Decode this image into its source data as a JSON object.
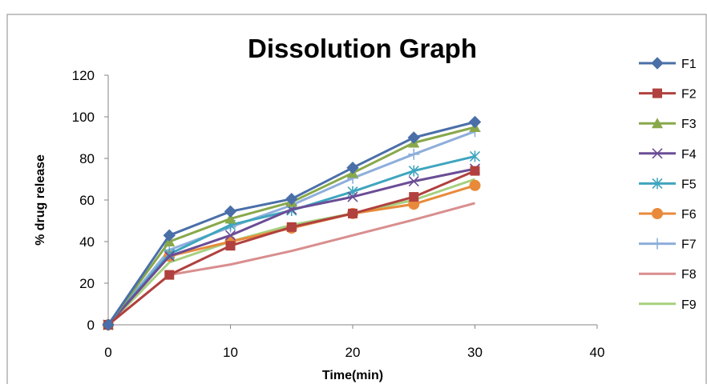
{
  "chart_data": {
    "type": "line",
    "title": "Dissolution Graph",
    "xlabel": "Time(min)",
    "ylabel": "% drug release",
    "xlim": [
      0,
      40
    ],
    "ylim": [
      0,
      120
    ],
    "xticks": [
      0,
      10,
      20,
      30,
      40
    ],
    "yticks": [
      0,
      20,
      40,
      60,
      80,
      100,
      120
    ],
    "grid": false,
    "legend": "right",
    "x": [
      0,
      5,
      10,
      15,
      20,
      25,
      30
    ],
    "series": [
      {
        "name": "F1",
        "color": "#4a6fa8",
        "marker": "diamond",
        "values": [
          0,
          43,
          54.5,
          60.5,
          75.5,
          90,
          97.5
        ]
      },
      {
        "name": "F2",
        "color": "#b0413e",
        "marker": "square",
        "values": [
          0,
          24,
          38,
          47,
          53.5,
          61.5,
          74
        ]
      },
      {
        "name": "F3",
        "color": "#88a84a",
        "marker": "triangle",
        "values": [
          0,
          40,
          51,
          59,
          73,
          87.5,
          95
        ]
      },
      {
        "name": "F4",
        "color": "#6b4d96",
        "marker": "x",
        "values": [
          0,
          33,
          43,
          55.5,
          61.5,
          69,
          75
        ]
      },
      {
        "name": "F5",
        "color": "#3fa5bf",
        "marker": "star",
        "values": [
          0,
          34,
          48,
          55,
          64,
          74,
          81
        ]
      },
      {
        "name": "F6",
        "color": "#e88a3a",
        "marker": "circle",
        "values": [
          0,
          33,
          40,
          46.5,
          53.5,
          58,
          67
        ]
      },
      {
        "name": "F7",
        "color": "#8eaedb",
        "marker": "plus",
        "values": [
          0,
          36,
          47,
          57.5,
          70.5,
          82,
          93
        ]
      },
      {
        "name": "F8",
        "color": "#d98e8e",
        "marker": "none",
        "values": [
          0,
          24,
          29,
          35.5,
          43,
          50.5,
          58.5
        ]
      },
      {
        "name": "F9",
        "color": "#a6cf7f",
        "marker": "none",
        "values": [
          0,
          30,
          40,
          48,
          53.5,
          60,
          70
        ]
      }
    ]
  }
}
